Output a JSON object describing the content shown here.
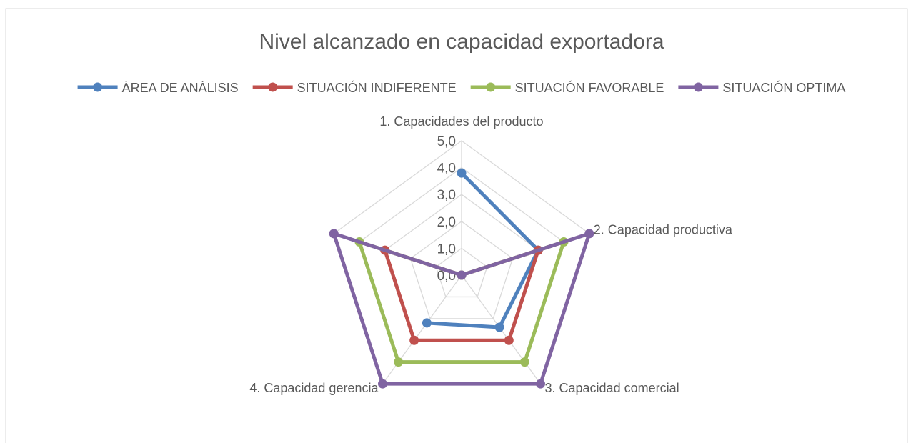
{
  "chart_data": {
    "type": "radar",
    "title": "Nivel alcanzado en capacidad exportadora",
    "categories": [
      "1. Capacidades del producto",
      "2. Capacidad productiva",
      "3. Capacidad comercial",
      "4. Capacidad gerencia",
      null
    ],
    "ylim": [
      0,
      5
    ],
    "yticks": [
      {
        "value": 0,
        "label": "0,0"
      },
      {
        "value": 1,
        "label": "1,0"
      },
      {
        "value": 2,
        "label": "2,0"
      },
      {
        "value": 3,
        "label": "3,0"
      },
      {
        "value": 4,
        "label": "4,0"
      },
      {
        "value": 5,
        "label": "5,0"
      }
    ],
    "grid": true,
    "legend": "top",
    "series": [
      {
        "name": "ÁREA DE ANÁLISIS",
        "color": "#4f81bd",
        "values": [
          3.8,
          3,
          2.4,
          2.2,
          null
        ]
      },
      {
        "name": "SITUACIÓN INDIFERENTE",
        "color": "#c0504d",
        "values": [
          0,
          3,
          3,
          3,
          3
        ]
      },
      {
        "name": "SITUACIÓN FAVORABLE",
        "color": "#9bbb59",
        "values": [
          0,
          4,
          4,
          4,
          4
        ]
      },
      {
        "name": "SITUACIÓN OPTIMA",
        "color": "#8064a2",
        "values": [
          0,
          5,
          5,
          5,
          5
        ]
      }
    ]
  }
}
